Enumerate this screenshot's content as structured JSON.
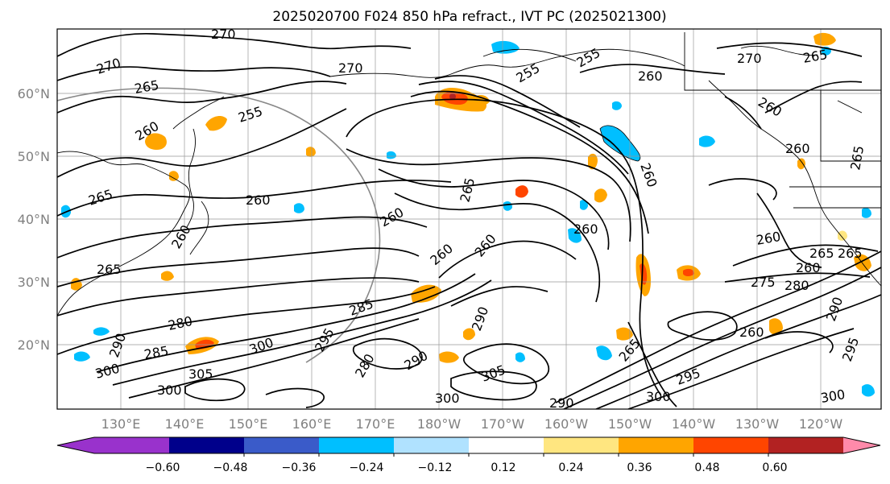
{
  "title": "2025020700 F024 850 hPa refract., IVT PC (2025021300)",
  "lat_labels": [
    "60°N",
    "50°N",
    "40°N",
    "30°N",
    "20°N"
  ],
  "lon_labels": [
    "130°E",
    "140°E",
    "150°E",
    "160°E",
    "170°E",
    "180°W",
    "170°W",
    "160°W",
    "150°W",
    "140°W",
    "130°W",
    "120°W"
  ],
  "colorbar": {
    "colors": [
      "#9932cc",
      "#00008b",
      "#3a5bc9",
      "#00bfff",
      "#b0e2ff",
      "#ffffff",
      "#ffe680",
      "#ffa500",
      "#ff4500",
      "#b22222",
      "#ff8aaa"
    ],
    "tick_labels": [
      "−0.60",
      "−0.48",
      "−0.36",
      "−0.24",
      "−0.12",
      "0.12",
      "0.24",
      "0.36",
      "0.48",
      "0.60"
    ]
  },
  "contour_labels": [
    "270",
    "270",
    "265",
    "255",
    "260",
    "260",
    "265",
    "260",
    "265",
    "260",
    "265",
    "260",
    "260",
    "270",
    "255",
    "260",
    "265",
    "260",
    "260",
    "255",
    "260",
    "270",
    "265",
    "260",
    "265",
    "265",
    "260",
    "260",
    "275",
    "280",
    "280",
    "290",
    "300",
    "285",
    "285",
    "290",
    "300",
    "305",
    "300",
    "280",
    "290",
    "295",
    "300",
    "260",
    "265",
    "290",
    "295",
    "300",
    "290",
    "305",
    "300",
    "295"
  ]
}
